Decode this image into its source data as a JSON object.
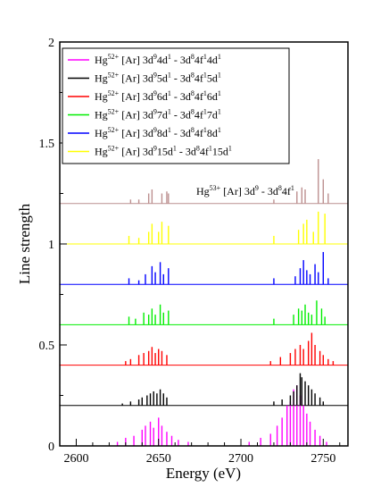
{
  "chart_data": {
    "type": "line",
    "xlabel": "Energy (eV)",
    "ylabel": "Line strength",
    "xlim": [
      2590,
      2765
    ],
    "ylim": [
      0,
      2
    ],
    "xticks": [
      2600,
      2650,
      2700,
      2750
    ],
    "yticks": [
      0,
      0.5,
      1,
      1.5,
      2
    ],
    "ytick_labels": [
      "0",
      "0.5",
      "1",
      "1.5",
      "2"
    ],
    "grid": false,
    "legend_position": "top-left",
    "series": [
      {
        "name": "Hg52+ [Ar] 3d9 4d1 - 3d8 4f1 4d1",
        "legend_parts": [
          "Hg",
          "52+",
          " [Ar] 3d",
          "9",
          "4d",
          "1",
          " - 3d",
          "8",
          "4f",
          "1",
          "4d",
          "1"
        ],
        "color": "#ff00ff",
        "baseline": 0.0,
        "lines": [
          [
            2625,
            0.02
          ],
          [
            2630,
            0.04
          ],
          [
            2635,
            0.05
          ],
          [
            2640,
            0.08
          ],
          [
            2642,
            0.1
          ],
          [
            2645,
            0.12
          ],
          [
            2647,
            0.09
          ],
          [
            2650,
            0.14
          ],
          [
            2652,
            0.1
          ],
          [
            2655,
            0.07
          ],
          [
            2658,
            0.05
          ],
          [
            2662,
            0.03
          ],
          [
            2668,
            0.02
          ],
          [
            2705,
            0.02
          ],
          [
            2712,
            0.04
          ],
          [
            2718,
            0.06
          ],
          [
            2722,
            0.1
          ],
          [
            2725,
            0.14
          ],
          [
            2728,
            0.2
          ],
          [
            2730,
            0.22
          ],
          [
            2732,
            0.28
          ],
          [
            2734,
            0.3
          ],
          [
            2736,
            0.25
          ],
          [
            2738,
            0.2
          ],
          [
            2740,
            0.16
          ],
          [
            2742,
            0.12
          ],
          [
            2745,
            0.08
          ],
          [
            2748,
            0.05
          ],
          [
            2752,
            0.02
          ]
        ]
      },
      {
        "name": "Hg52+ [Ar] 3d9 5d1 - 3d8 4f1 5d1",
        "legend_parts": [
          "Hg",
          "52+",
          " [Ar] 3d",
          "9",
          "5d",
          "1",
          " - 3d",
          "8",
          "4f",
          "1",
          "5d",
          "1"
        ],
        "color": "#000000",
        "baseline": 0.2,
        "lines": [
          [
            2628,
            0.01
          ],
          [
            2633,
            0.02
          ],
          [
            2638,
            0.03
          ],
          [
            2640,
            0.04
          ],
          [
            2643,
            0.05
          ],
          [
            2645,
            0.06
          ],
          [
            2647,
            0.07
          ],
          [
            2649,
            0.06
          ],
          [
            2651,
            0.08
          ],
          [
            2653,
            0.06
          ],
          [
            2655,
            0.04
          ],
          [
            2720,
            0.02
          ],
          [
            2725,
            0.03
          ],
          [
            2730,
            0.05
          ],
          [
            2732,
            0.07
          ],
          [
            2734,
            0.1
          ],
          [
            2736,
            0.16
          ],
          [
            2737,
            0.14
          ],
          [
            2739,
            0.12
          ],
          [
            2741,
            0.1
          ],
          [
            2743,
            0.08
          ],
          [
            2745,
            0.06
          ],
          [
            2748,
            0.04
          ],
          [
            2750,
            0.02
          ]
        ]
      },
      {
        "name": "Hg52+ [Ar] 3d9 6d1 - 3d8 4f1 6d1",
        "legend_parts": [
          "Hg",
          "52+",
          " [Ar] 3d",
          "9",
          "6d",
          "1",
          " - 3d",
          "8",
          "4f",
          "1",
          "6d",
          "1"
        ],
        "color": "#ff0000",
        "baseline": 0.4,
        "lines": [
          [
            2630,
            0.02
          ],
          [
            2633,
            0.03
          ],
          [
            2638,
            0.05
          ],
          [
            2641,
            0.06
          ],
          [
            2644,
            0.07
          ],
          [
            2646,
            0.09
          ],
          [
            2648,
            0.06
          ],
          [
            2650,
            0.08
          ],
          [
            2652,
            0.07
          ],
          [
            2655,
            0.05
          ],
          [
            2718,
            0.02
          ],
          [
            2724,
            0.04
          ],
          [
            2730,
            0.06
          ],
          [
            2733,
            0.08
          ],
          [
            2736,
            0.1
          ],
          [
            2738,
            0.08
          ],
          [
            2741,
            0.12
          ],
          [
            2743,
            0.16
          ],
          [
            2745,
            0.1
          ],
          [
            2748,
            0.07
          ],
          [
            2750,
            0.05
          ],
          [
            2753,
            0.03
          ],
          [
            2756,
            0.02
          ]
        ]
      },
      {
        "name": "Hg52+ [Ar] 3d9 7d1 - 3d8 4f1 7d1",
        "legend_parts": [
          "Hg",
          "52+",
          " [Ar] 3d",
          "9",
          "7d",
          "1",
          " - 3d",
          "8",
          "4f",
          "1",
          "7d",
          "1"
        ],
        "color": "#00ee00",
        "baseline": 0.6,
        "lines": [
          [
            2632,
            0.04
          ],
          [
            2636,
            0.03
          ],
          [
            2641,
            0.06
          ],
          [
            2644,
            0.05
          ],
          [
            2646,
            0.08
          ],
          [
            2648,
            0.05
          ],
          [
            2651,
            0.1
          ],
          [
            2653,
            0.06
          ],
          [
            2656,
            0.07
          ],
          [
            2720,
            0.03
          ],
          [
            2732,
            0.05
          ],
          [
            2735,
            0.08
          ],
          [
            2737,
            0.07
          ],
          [
            2739,
            0.1
          ],
          [
            2741,
            0.06
          ],
          [
            2743,
            0.05
          ],
          [
            2746,
            0.12
          ],
          [
            2749,
            0.08
          ],
          [
            2751,
            0.04
          ]
        ]
      },
      {
        "name": "Hg52+ [Ar] 3d9 8d1 - 3d8 4f1 8d1",
        "legend_parts": [
          "Hg",
          "52+",
          " [Ar] 3d",
          "9",
          "8d",
          "1",
          " - 3d",
          "8",
          "4f",
          "1",
          "8d",
          "1"
        ],
        "color": "#0000ff",
        "baseline": 0.8,
        "lines": [
          [
            2632,
            0.03
          ],
          [
            2638,
            0.02
          ],
          [
            2642,
            0.05
          ],
          [
            2646,
            0.09
          ],
          [
            2648,
            0.06
          ],
          [
            2651,
            0.11
          ],
          [
            2653,
            0.05
          ],
          [
            2656,
            0.08
          ],
          [
            2720,
            0.03
          ],
          [
            2733,
            0.04
          ],
          [
            2736,
            0.08
          ],
          [
            2738,
            0.12
          ],
          [
            2740,
            0.07
          ],
          [
            2742,
            0.05
          ],
          [
            2745,
            0.1
          ],
          [
            2747,
            0.06
          ],
          [
            2750,
            0.16
          ],
          [
            2753,
            0.03
          ]
        ]
      },
      {
        "name": "Hg52+ [Ar] 3d9 15d1 - 3d8 4f1 15d1",
        "legend_parts": [
          "Hg",
          "52+",
          " [Ar] 3d",
          "9",
          "15d",
          "1",
          " - 3d",
          "8",
          "4f",
          "1",
          "15d",
          "1"
        ],
        "color": "#ffff00",
        "baseline": 1.0,
        "lines": [
          [
            2632,
            0.04
          ],
          [
            2638,
            0.03
          ],
          [
            2644,
            0.06
          ],
          [
            2646,
            0.1
          ],
          [
            2650,
            0.06
          ],
          [
            2652,
            0.11
          ],
          [
            2656,
            0.09
          ],
          [
            2720,
            0.04
          ],
          [
            2735,
            0.07
          ],
          [
            2738,
            0.1
          ],
          [
            2740,
            0.12
          ],
          [
            2744,
            0.06
          ],
          [
            2747,
            0.16
          ],
          [
            2751,
            0.15
          ]
        ]
      },
      {
        "name": "Hg53+ [Ar] 3d9 - 3d8 4f1",
        "legend_parts": [
          "Hg",
          "53+",
          " [Ar] 3d",
          "9",
          " - 3d",
          "8",
          "4f",
          "1"
        ],
        "color": "#bc8f8f",
        "baseline": 1.2,
        "lines": [
          [
            2633,
            0.02
          ],
          [
            2638,
            0.02
          ],
          [
            2644,
            0.05
          ],
          [
            2646,
            0.07
          ],
          [
            2652,
            0.05
          ],
          [
            2655,
            0.06
          ],
          [
            2656,
            0.05
          ],
          [
            2720,
            0.02
          ],
          [
            2734,
            0.06
          ],
          [
            2737,
            0.08
          ],
          [
            2739,
            0.07
          ],
          [
            2747,
            0.22
          ],
          [
            2750,
            0.12
          ],
          [
            2753,
            0.05
          ]
        ]
      }
    ]
  }
}
